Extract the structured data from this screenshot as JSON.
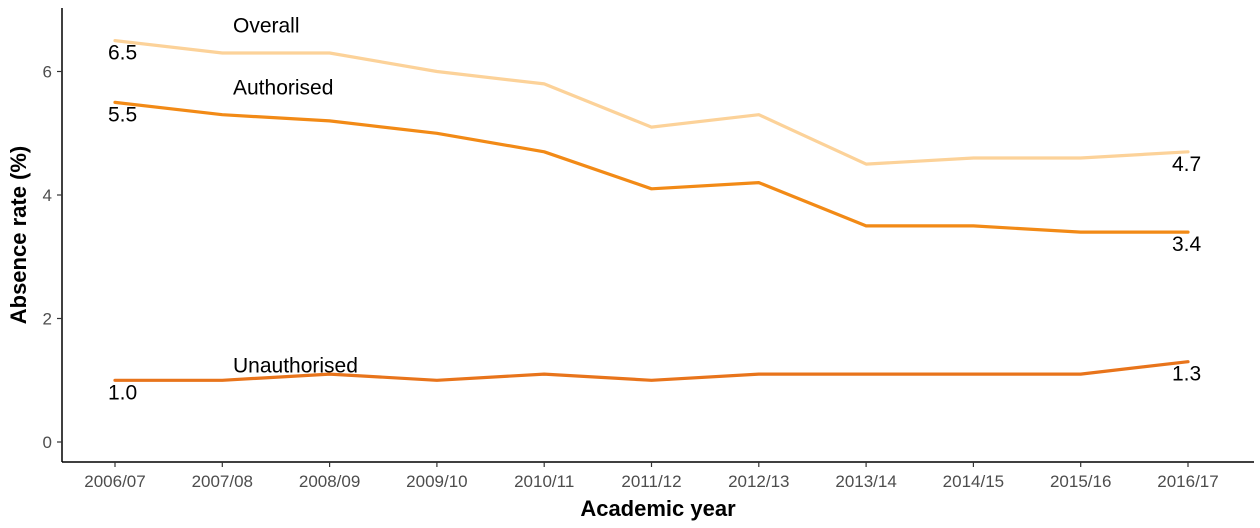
{
  "chart_data": {
    "type": "line",
    "xlabel": "Academic year",
    "ylabel": "Absence rate (%)",
    "categories": [
      "2006/07",
      "2007/08",
      "2008/09",
      "2009/10",
      "2010/11",
      "2011/12",
      "2012/13",
      "2013/14",
      "2014/15",
      "2015/16",
      "2016/17"
    ],
    "ylim": [
      0,
      7
    ],
    "yticks": [
      0,
      2,
      4,
      6
    ],
    "grid": false,
    "series": [
      {
        "name": "Overall",
        "color": "#fcd299",
        "values": [
          6.5,
          6.3,
          6.3,
          6.0,
          5.8,
          5.1,
          5.3,
          4.5,
          4.6,
          4.6,
          4.7
        ],
        "start_label": "6.5",
        "end_label": "4.7"
      },
      {
        "name": "Authorised",
        "color": "#f28a16",
        "values": [
          5.5,
          5.3,
          5.2,
          5.0,
          4.7,
          4.1,
          4.2,
          3.5,
          3.5,
          3.4,
          3.4
        ],
        "start_label": "5.5",
        "end_label": "3.4"
      },
      {
        "name": "Unauthorised",
        "color": "#e8741b",
        "values": [
          1.0,
          1.0,
          1.1,
          1.0,
          1.1,
          1.0,
          1.1,
          1.1,
          1.1,
          1.1,
          1.3
        ],
        "start_label": "1.0",
        "end_label": "1.3"
      }
    ]
  }
}
